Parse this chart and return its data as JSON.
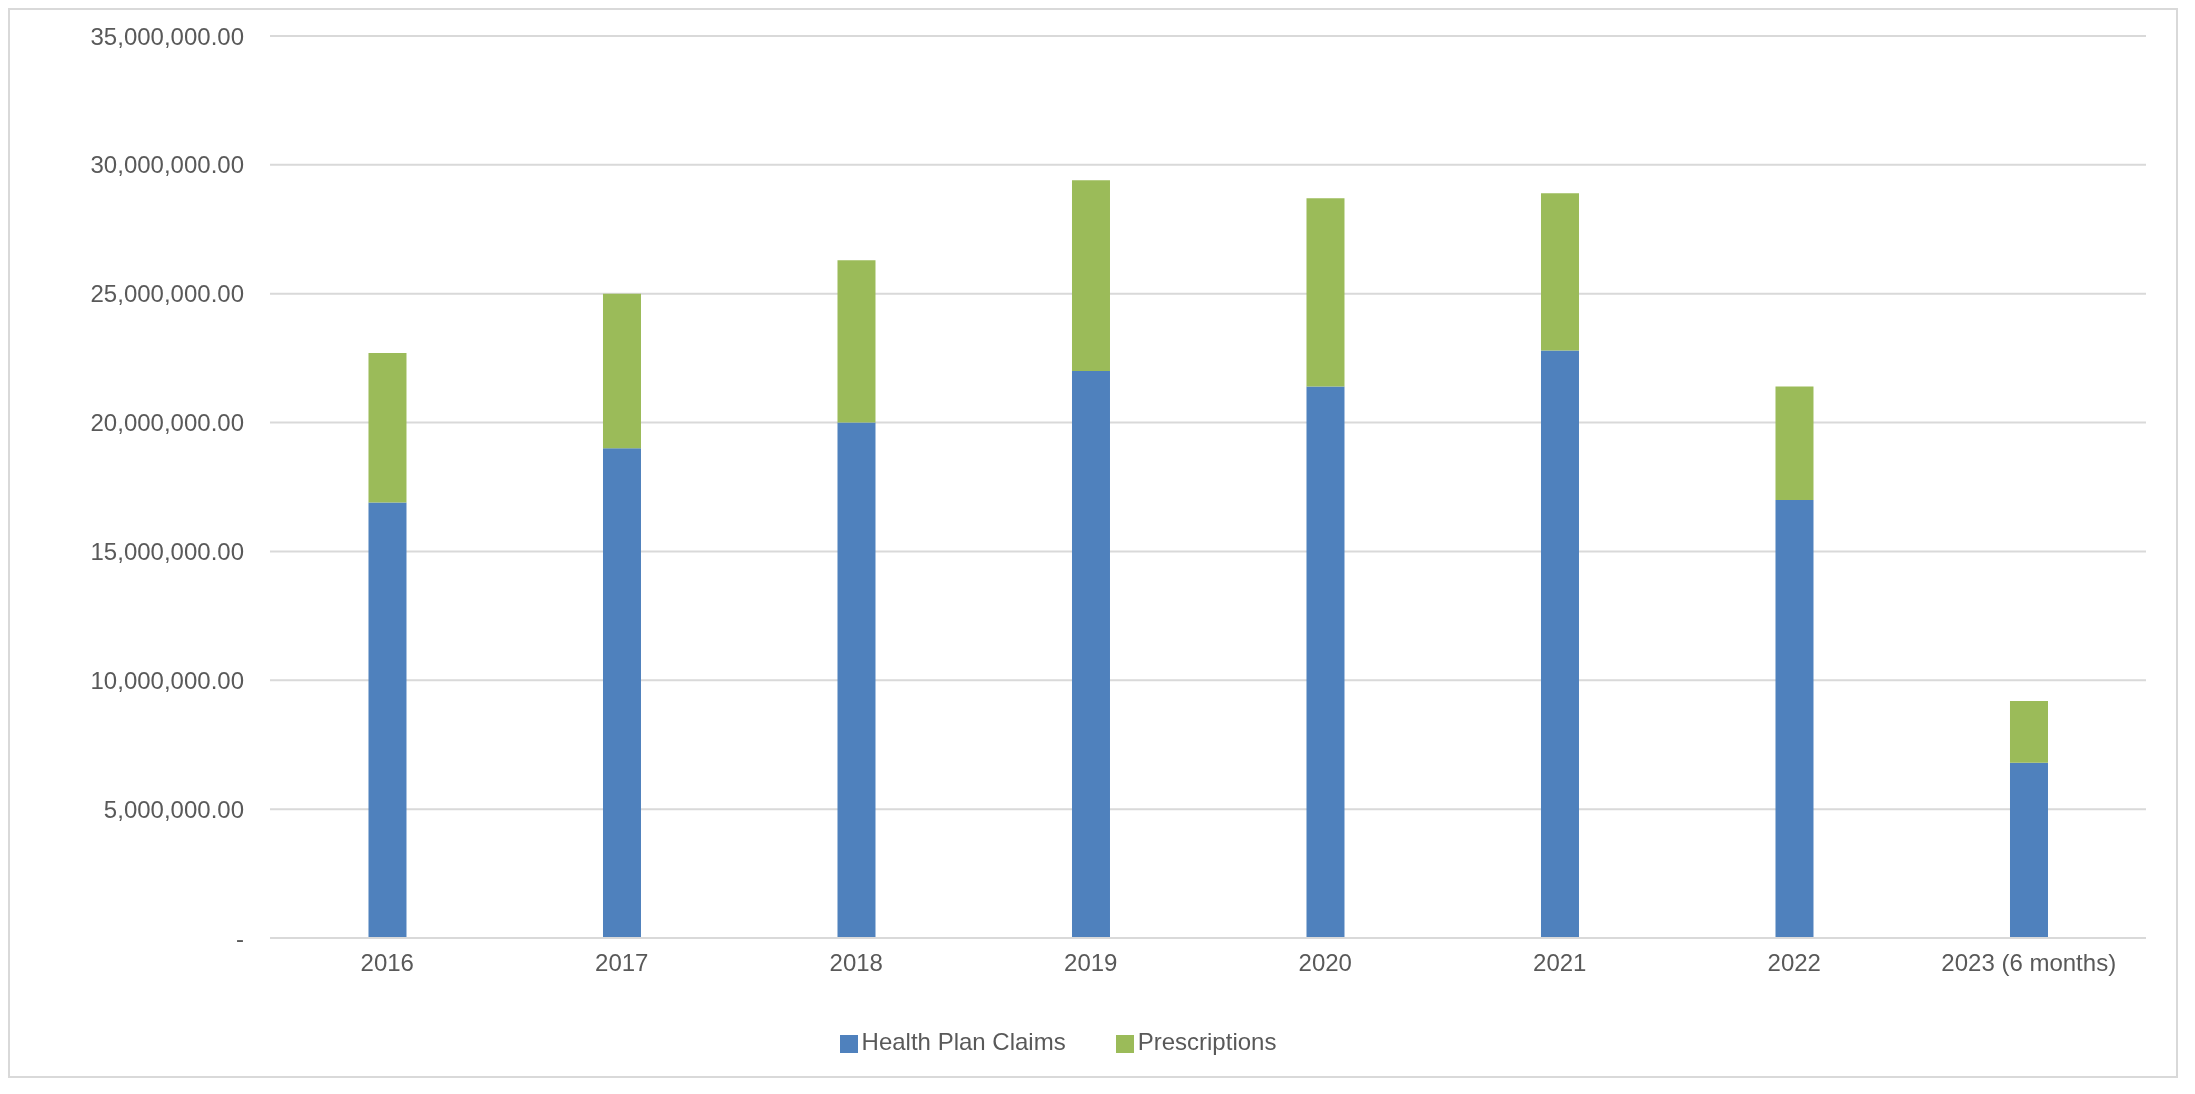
{
  "chart_data": {
    "type": "bar",
    "stacked": true,
    "categories": [
      "2016",
      "2017",
      "2018",
      "2019",
      "2020",
      "2021",
      "2022",
      "2023 (6 months)"
    ],
    "series": [
      {
        "name": "Health Plan Claims",
        "color": "#4f81bd",
        "values": [
          16900000,
          19000000,
          20000000,
          22000000,
          21400000,
          22800000,
          17000000,
          6800000
        ]
      },
      {
        "name": "Prescriptions",
        "color": "#9bbb59",
        "values": [
          5800000,
          6000000,
          6300000,
          7400000,
          7300000,
          6100000,
          4400000,
          2400000
        ]
      }
    ],
    "ylim": [
      0,
      35000000
    ],
    "yticks": [
      {
        "value": 0,
        "label": "-"
      },
      {
        "value": 5000000,
        "label": "5,000,000.00"
      },
      {
        "value": 10000000,
        "label": "10,000,000.00"
      },
      {
        "value": 15000000,
        "label": "15,000,000.00"
      },
      {
        "value": 20000000,
        "label": "20,000,000.00"
      },
      {
        "value": 25000000,
        "label": "25,000,000.00"
      },
      {
        "value": 30000000,
        "label": "30,000,000.00"
      },
      {
        "value": 35000000,
        "label": "35,000,000.00"
      }
    ],
    "grid": "y",
    "legend": "bottom"
  }
}
